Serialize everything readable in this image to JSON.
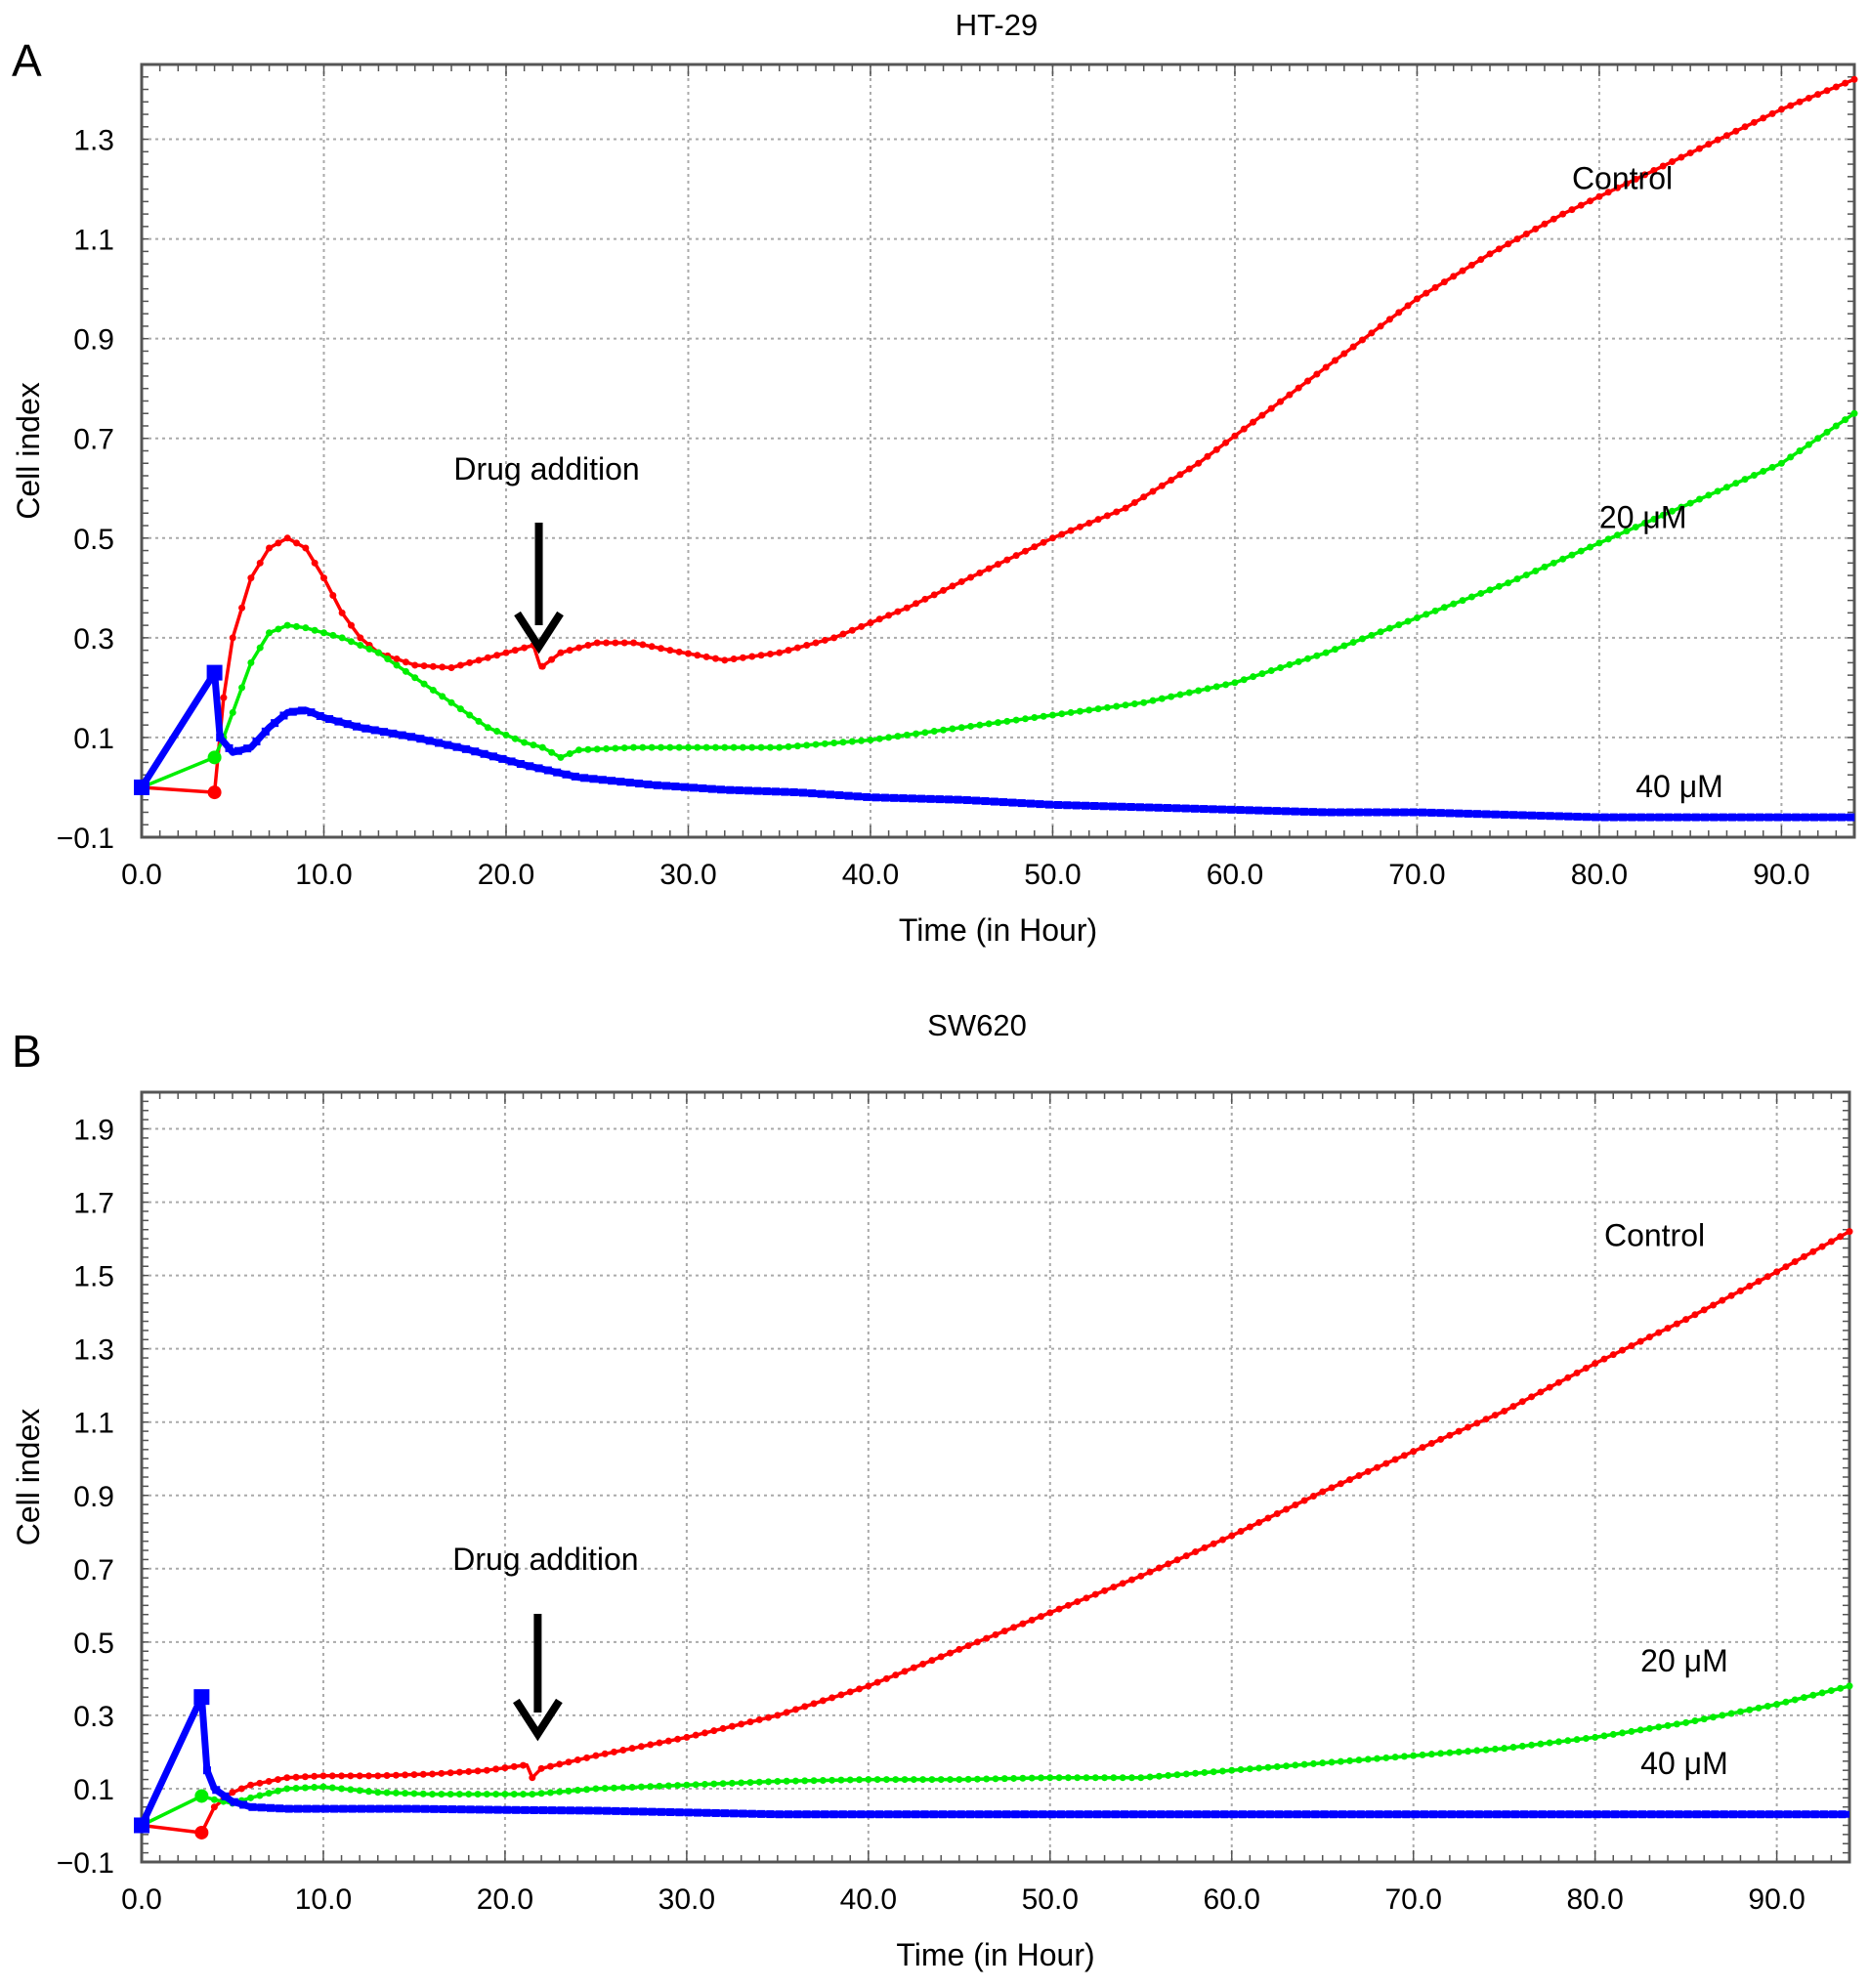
{
  "chart_data": [
    {
      "type": "line",
      "panel": "A",
      "title": "HT-29",
      "xlabel": "Time (in Hour)",
      "ylabel": "Cell index",
      "xlim": [
        0,
        94
      ],
      "ylim": [
        -0.1,
        1.45
      ],
      "xticks": [
        "0.0",
        "10.0",
        "20.0",
        "30.0",
        "40.0",
        "50.0",
        "60.0",
        "70.0",
        "80.0",
        "90.0"
      ],
      "yticks": [
        "−0.1",
        "0.1",
        "0.3",
        "0.5",
        "0.7",
        "0.9",
        "1.1",
        "1.3"
      ],
      "grid": true,
      "annotation": {
        "text": "Drug addition",
        "x": 21.8
      },
      "series": [
        {
          "name": "Control",
          "color": "#ff0000",
          "label_at": [
            78.5,
            1.2
          ],
          "points": [
            [
              0,
              0
            ],
            [
              4,
              -0.01
            ],
            [
              4.5,
              0.18
            ],
            [
              5,
              0.3
            ],
            [
              6,
              0.42
            ],
            [
              7,
              0.48
            ],
            [
              8,
              0.5
            ],
            [
              9,
              0.48
            ],
            [
              10,
              0.42
            ],
            [
              11,
              0.35
            ],
            [
              12,
              0.3
            ],
            [
              13,
              0.27
            ],
            [
              15,
              0.245
            ],
            [
              17,
              0.24
            ],
            [
              19,
              0.26
            ],
            [
              21.5,
              0.285
            ],
            [
              21.9,
              0.24
            ],
            [
              23,
              0.27
            ],
            [
              25,
              0.29
            ],
            [
              27,
              0.29
            ],
            [
              29,
              0.275
            ],
            [
              32,
              0.255
            ],
            [
              35,
              0.27
            ],
            [
              38,
              0.3
            ],
            [
              42,
              0.36
            ],
            [
              46,
              0.43
            ],
            [
              50,
              0.5
            ],
            [
              54,
              0.56
            ],
            [
              58,
              0.65
            ],
            [
              62,
              0.76
            ],
            [
              66,
              0.87
            ],
            [
              70,
              0.98
            ],
            [
              74,
              1.07
            ],
            [
              78,
              1.15
            ],
            [
              82,
              1.22
            ],
            [
              86,
              1.29
            ],
            [
              90,
              1.36
            ],
            [
              94,
              1.42
            ]
          ]
        },
        {
          "name": "20 μM",
          "color": "#00ee00",
          "label_at": [
            80,
            0.52
          ],
          "points": [
            [
              0,
              0
            ],
            [
              4,
              0.06
            ],
            [
              4.5,
              0.1
            ],
            [
              5,
              0.15
            ],
            [
              6,
              0.25
            ],
            [
              7,
              0.31
            ],
            [
              8,
              0.325
            ],
            [
              9,
              0.32
            ],
            [
              11,
              0.3
            ],
            [
              13,
              0.27
            ],
            [
              15,
              0.22
            ],
            [
              17,
              0.17
            ],
            [
              19,
              0.12
            ],
            [
              21,
              0.09
            ],
            [
              22,
              0.08
            ],
            [
              23,
              0.06
            ],
            [
              24,
              0.075
            ],
            [
              27,
              0.08
            ],
            [
              30,
              0.08
            ],
            [
              35,
              0.08
            ],
            [
              40,
              0.095
            ],
            [
              45,
              0.12
            ],
            [
              50,
              0.145
            ],
            [
              55,
              0.17
            ],
            [
              60,
              0.21
            ],
            [
              65,
              0.27
            ],
            [
              70,
              0.34
            ],
            [
              75,
              0.41
            ],
            [
              80,
              0.49
            ],
            [
              85,
              0.57
            ],
            [
              90,
              0.65
            ],
            [
              94,
              0.75
            ]
          ]
        },
        {
          "name": "40 μM",
          "color": "#0000ff",
          "label_at": [
            82,
            -0.02
          ],
          "points": [
            [
              0,
              0
            ],
            [
              4,
              0.23
            ],
            [
              4.3,
              0.1
            ],
            [
              5,
              0.07
            ],
            [
              6,
              0.08
            ],
            [
              7,
              0.12
            ],
            [
              8,
              0.15
            ],
            [
              9,
              0.155
            ],
            [
              10,
              0.14
            ],
            [
              12,
              0.12
            ],
            [
              15,
              0.1
            ],
            [
              18,
              0.075
            ],
            [
              21,
              0.045
            ],
            [
              24,
              0.02
            ],
            [
              28,
              0.005
            ],
            [
              32,
              -0.005
            ],
            [
              36,
              -0.01
            ],
            [
              40,
              -0.02
            ],
            [
              45,
              -0.025
            ],
            [
              50,
              -0.035
            ],
            [
              55,
              -0.04
            ],
            [
              60,
              -0.045
            ],
            [
              65,
              -0.05
            ],
            [
              70,
              -0.05
            ],
            [
              75,
              -0.055
            ],
            [
              80,
              -0.06
            ],
            [
              85,
              -0.06
            ],
            [
              90,
              -0.06
            ],
            [
              94,
              -0.06
            ]
          ]
        }
      ]
    },
    {
      "type": "line",
      "panel": "B",
      "title": "SW620",
      "xlabel": "Time (in Hour)",
      "ylabel": "Cell index",
      "xlim": [
        0,
        94
      ],
      "ylim": [
        -0.1,
        2.0
      ],
      "xticks": [
        "0.0",
        "10.0",
        "20.0",
        "30.0",
        "40.0",
        "50.0",
        "60.0",
        "70.0",
        "80.0",
        "90.0"
      ],
      "yticks": [
        "−0.1",
        "0.1",
        "0.3",
        "0.5",
        "0.7",
        "0.9",
        "1.1",
        "1.3",
        "1.5",
        "1.7",
        "1.9"
      ],
      "grid": true,
      "annotation": {
        "text": "Drug addition",
        "x": 21.8
      },
      "series": [
        {
          "name": "Control",
          "color": "#ff0000",
          "label_at": [
            80.5,
            1.58
          ],
          "points": [
            [
              0,
              0
            ],
            [
              3.3,
              -0.02
            ],
            [
              4,
              0.05
            ],
            [
              5,
              0.09
            ],
            [
              6,
              0.11
            ],
            [
              8,
              0.13
            ],
            [
              10,
              0.135
            ],
            [
              13,
              0.135
            ],
            [
              16,
              0.14
            ],
            [
              19,
              0.15
            ],
            [
              21.2,
              0.165
            ],
            [
              21.5,
              0.13
            ],
            [
              22,
              0.155
            ],
            [
              25,
              0.19
            ],
            [
              30,
              0.24
            ],
            [
              35,
              0.3
            ],
            [
              40,
              0.38
            ],
            [
              45,
              0.48
            ],
            [
              50,
              0.58
            ],
            [
              55,
              0.68
            ],
            [
              60,
              0.79
            ],
            [
              65,
              0.91
            ],
            [
              70,
              1.02
            ],
            [
              75,
              1.13
            ],
            [
              80,
              1.26
            ],
            [
              85,
              1.38
            ],
            [
              90,
              1.51
            ],
            [
              94,
              1.62
            ]
          ]
        },
        {
          "name": "20 μM",
          "color": "#00ee00",
          "label_at": [
            82.5,
            0.42
          ],
          "points": [
            [
              0,
              0
            ],
            [
              3.3,
              0.08
            ],
            [
              4,
              0.07
            ],
            [
              5,
              0.06
            ],
            [
              6,
              0.075
            ],
            [
              8,
              0.1
            ],
            [
              10,
              0.105
            ],
            [
              13,
              0.09
            ],
            [
              16,
              0.085
            ],
            [
              19,
              0.085
            ],
            [
              21.5,
              0.085
            ],
            [
              25,
              0.1
            ],
            [
              30,
              0.11
            ],
            [
              35,
              0.12
            ],
            [
              40,
              0.125
            ],
            [
              45,
              0.125
            ],
            [
              50,
              0.13
            ],
            [
              55,
              0.13
            ],
            [
              60,
              0.15
            ],
            [
              65,
              0.17
            ],
            [
              70,
              0.19
            ],
            [
              75,
              0.21
            ],
            [
              80,
              0.24
            ],
            [
              85,
              0.28
            ],
            [
              90,
              0.33
            ],
            [
              94,
              0.38
            ]
          ]
        },
        {
          "name": "40 μM",
          "color": "#0000ff",
          "label_at": [
            82.5,
            0.14
          ],
          "points": [
            [
              0,
              0
            ],
            [
              3.3,
              0.35
            ],
            [
              3.6,
              0.15
            ],
            [
              4,
              0.1
            ],
            [
              5,
              0.065
            ],
            [
              6,
              0.05
            ],
            [
              8,
              0.045
            ],
            [
              10,
              0.045
            ],
            [
              15,
              0.045
            ],
            [
              20,
              0.042
            ],
            [
              25,
              0.04
            ],
            [
              30,
              0.035
            ],
            [
              35,
              0.03
            ],
            [
              40,
              0.03
            ],
            [
              45,
              0.03
            ],
            [
              50,
              0.03
            ],
            [
              55,
              0.03
            ],
            [
              60,
              0.03
            ],
            [
              65,
              0.03
            ],
            [
              70,
              0.03
            ],
            [
              75,
              0.03
            ],
            [
              80,
              0.03
            ],
            [
              85,
              0.03
            ],
            [
              90,
              0.03
            ],
            [
              94,
              0.03
            ]
          ]
        }
      ]
    }
  ]
}
